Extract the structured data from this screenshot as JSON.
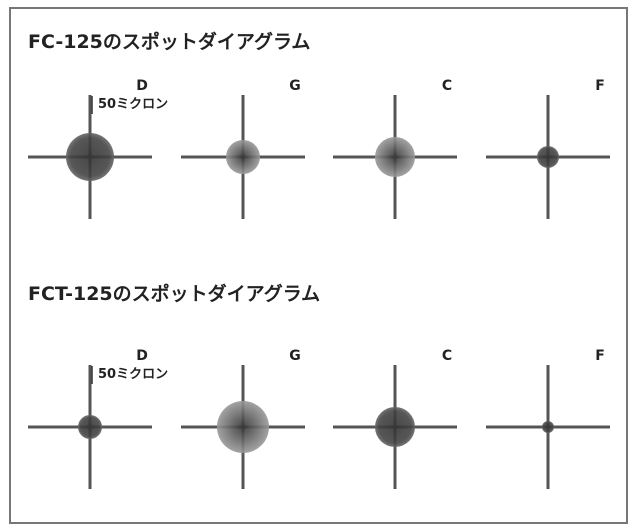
{
  "panels": [
    {
      "title": "FC-125のスポットダイアグラム",
      "scale_label": "50ミクロン",
      "spots": [
        "D",
        "G",
        "C",
        "F"
      ]
    },
    {
      "title": "FCT-125のスポットダイアグラム",
      "scale_label": "50ミクロン",
      "spots": [
        "D",
        "G",
        "C",
        "F"
      ]
    }
  ]
}
